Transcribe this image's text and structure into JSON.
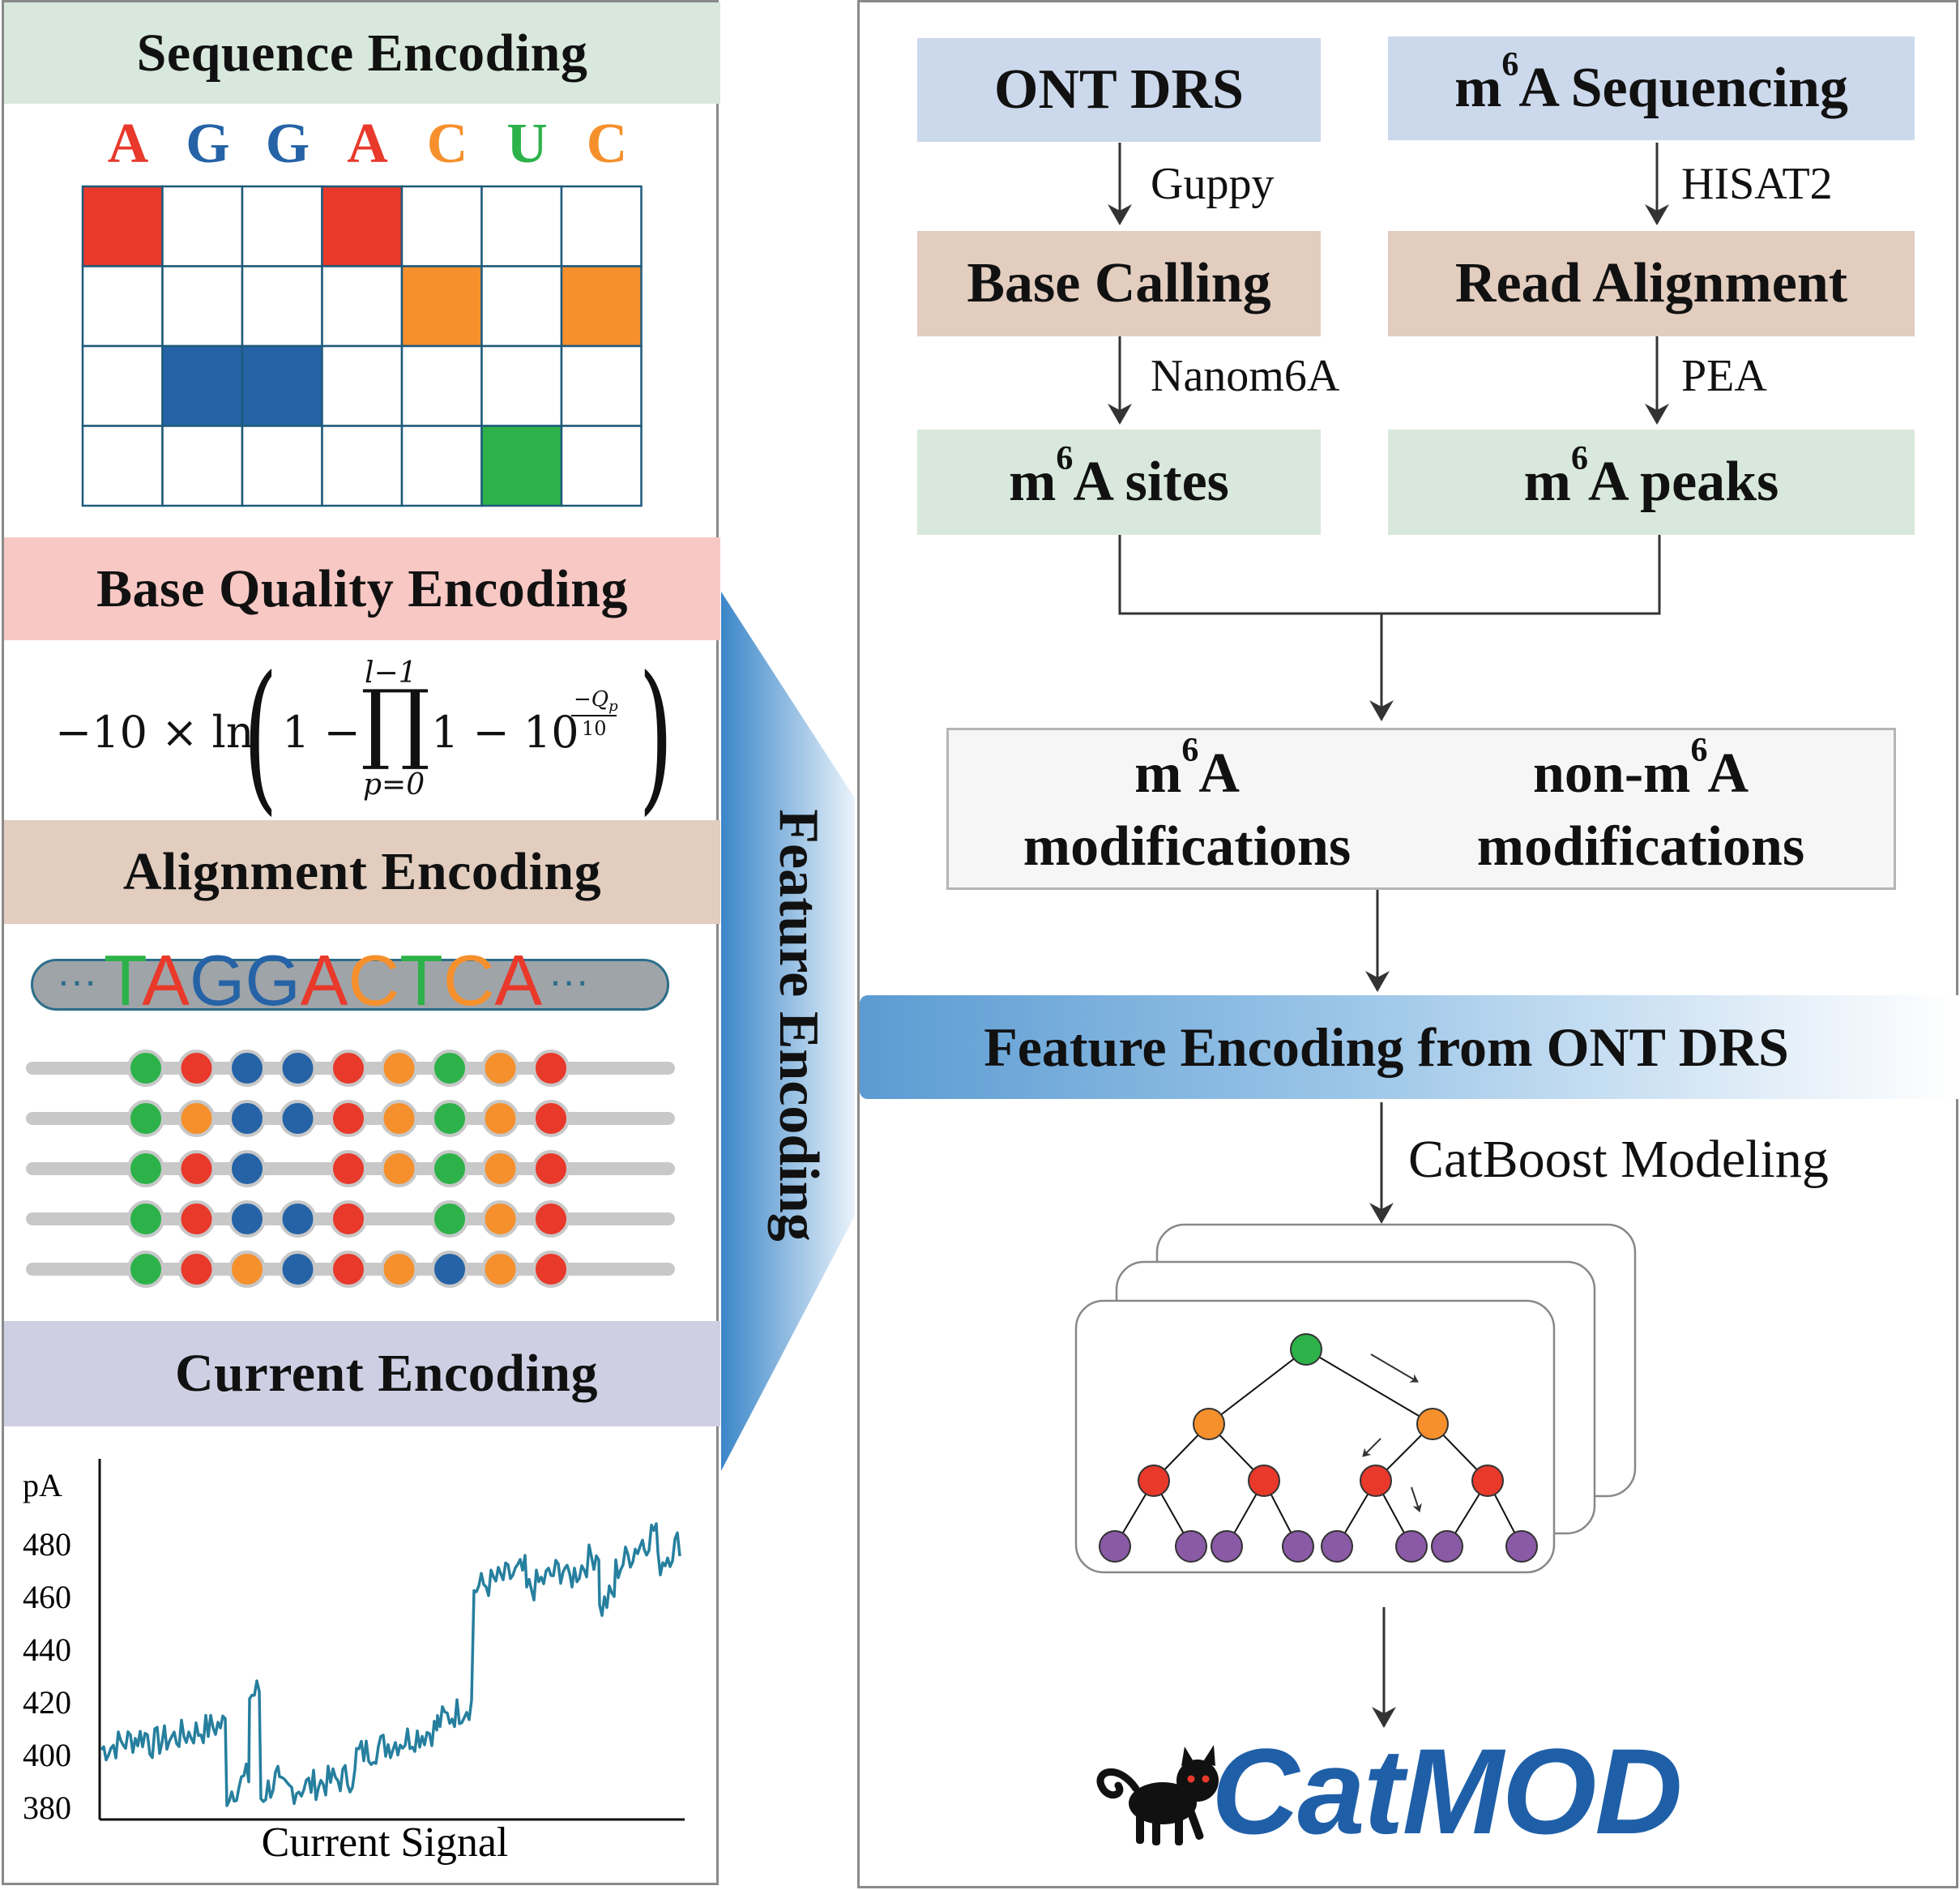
{
  "colors": {
    "A": "#e8392b",
    "G": "#2563a6",
    "C": "#f5902c",
    "U": "#2db24a",
    "T": "#2db24a",
    "green_band": "#d8e8dc",
    "red_band": "#f8c8c4",
    "tan_band": "#e2cdbf",
    "purple_band": "#cfcfe4",
    "blue_box": "#ccd8ec",
    "signal_line": "#267f9e",
    "catmod_blue": "#1f5fa8"
  },
  "left": {
    "sequence": {
      "title": "Sequence Encoding",
      "letters": [
        "A",
        "G",
        "G",
        "A",
        "C",
        "U",
        "C"
      ],
      "onehot_rows": [
        "A",
        "C",
        "G",
        "U"
      ]
    },
    "base_quality": {
      "title": "Base Quality Encoding",
      "formula": {
        "lead": "−10 × ln",
        "one": "1 −",
        "prod_upper": "l−1",
        "prod_symbol": "∏",
        "prod_lower": "p=0",
        "tail": "1 − 10",
        "exp_num": "−Q",
        "exp_sub": "p",
        "exp_den": "10"
      }
    },
    "alignment": {
      "title": "Alignment Encoding",
      "ref_prefix": "···",
      "ref_suffix": "···",
      "ref_letters": [
        "T",
        "A",
        "G",
        "G",
        "A",
        "C",
        "T",
        "C",
        "A"
      ],
      "reads": [
        [
          "U",
          "A",
          "G",
          "G",
          "A",
          "C",
          "U",
          "C",
          "A"
        ],
        [
          "U",
          "C",
          "G",
          "G",
          "A",
          "C",
          "U",
          "C",
          "A"
        ],
        [
          "U",
          "A",
          "G",
          "",
          "A",
          "C",
          "U",
          "C",
          "A"
        ],
        [
          "U",
          "A",
          "G",
          "G",
          "A",
          "",
          "U",
          "C",
          "A"
        ],
        [
          "U",
          "A",
          "C",
          "G",
          "A",
          "C",
          "G",
          "C",
          "A"
        ]
      ]
    },
    "current": {
      "title": "Current Encoding",
      "ylabel": "pA",
      "xlabel": "Current Signal",
      "yticks": [
        "480",
        "460",
        "440",
        "420",
        "400",
        "380"
      ]
    }
  },
  "side_label": "Feature Encoding",
  "right": {
    "ont_drs": "ONT DRS",
    "m6a_seq_pre": "m",
    "m6a_seq_sup": "6",
    "m6a_seq_post": "A Sequencing",
    "guppy": "Guppy",
    "hisat2": "HISAT2",
    "base_calling": "Base Calling",
    "read_alignment": "Read Alignment",
    "nanom6a": "Nanom6A",
    "pea": "PEA",
    "sites_pre": "m",
    "sites_sup": "6",
    "sites_post": "A sites",
    "peaks_pre": "m",
    "peaks_sup": "6",
    "peaks_post": "A peaks",
    "mod_pre": "m",
    "mod_sup": "6",
    "mod_post": "A",
    "mod_line2": "modifications",
    "nonmod_pre": "non-m",
    "nonmod_sup": "6",
    "nonmod_post": "A",
    "nonmod_line2": "modifications",
    "feature_banner": "Feature Encoding from ONT DRS",
    "catboost": "CatBoost Modeling",
    "logo": "CatMOD"
  }
}
